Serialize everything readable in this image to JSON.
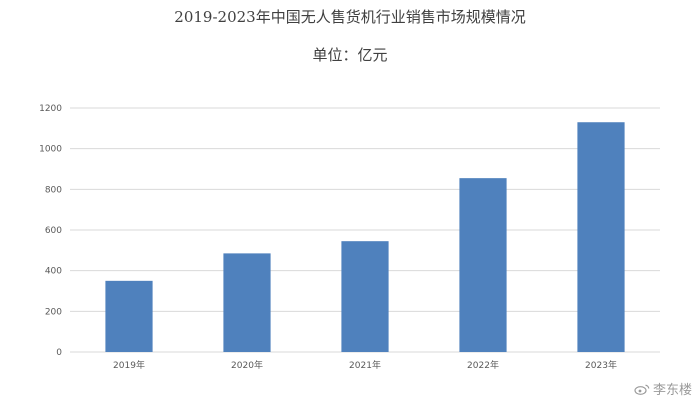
{
  "chart_data": {
    "type": "bar",
    "title": "2019-2023年中国无人售货机行业销售市场规模情况",
    "subtitle": "单位：亿元",
    "categories": [
      "2019年",
      "2020年",
      "2021年",
      "2022年",
      "2023年"
    ],
    "values": [
      350,
      485,
      545,
      855,
      1130
    ],
    "ylim": [
      0,
      1200
    ],
    "yticks": [
      0,
      200,
      400,
      600,
      800,
      1000,
      1200
    ],
    "xlabel": "",
    "ylabel": "",
    "grid": true,
    "legend": "none",
    "bar_color": "#4f81bd",
    "grid_color": "#d9d9d9"
  },
  "watermark": {
    "text": "李东楼",
    "icon": "weibo-icon"
  }
}
